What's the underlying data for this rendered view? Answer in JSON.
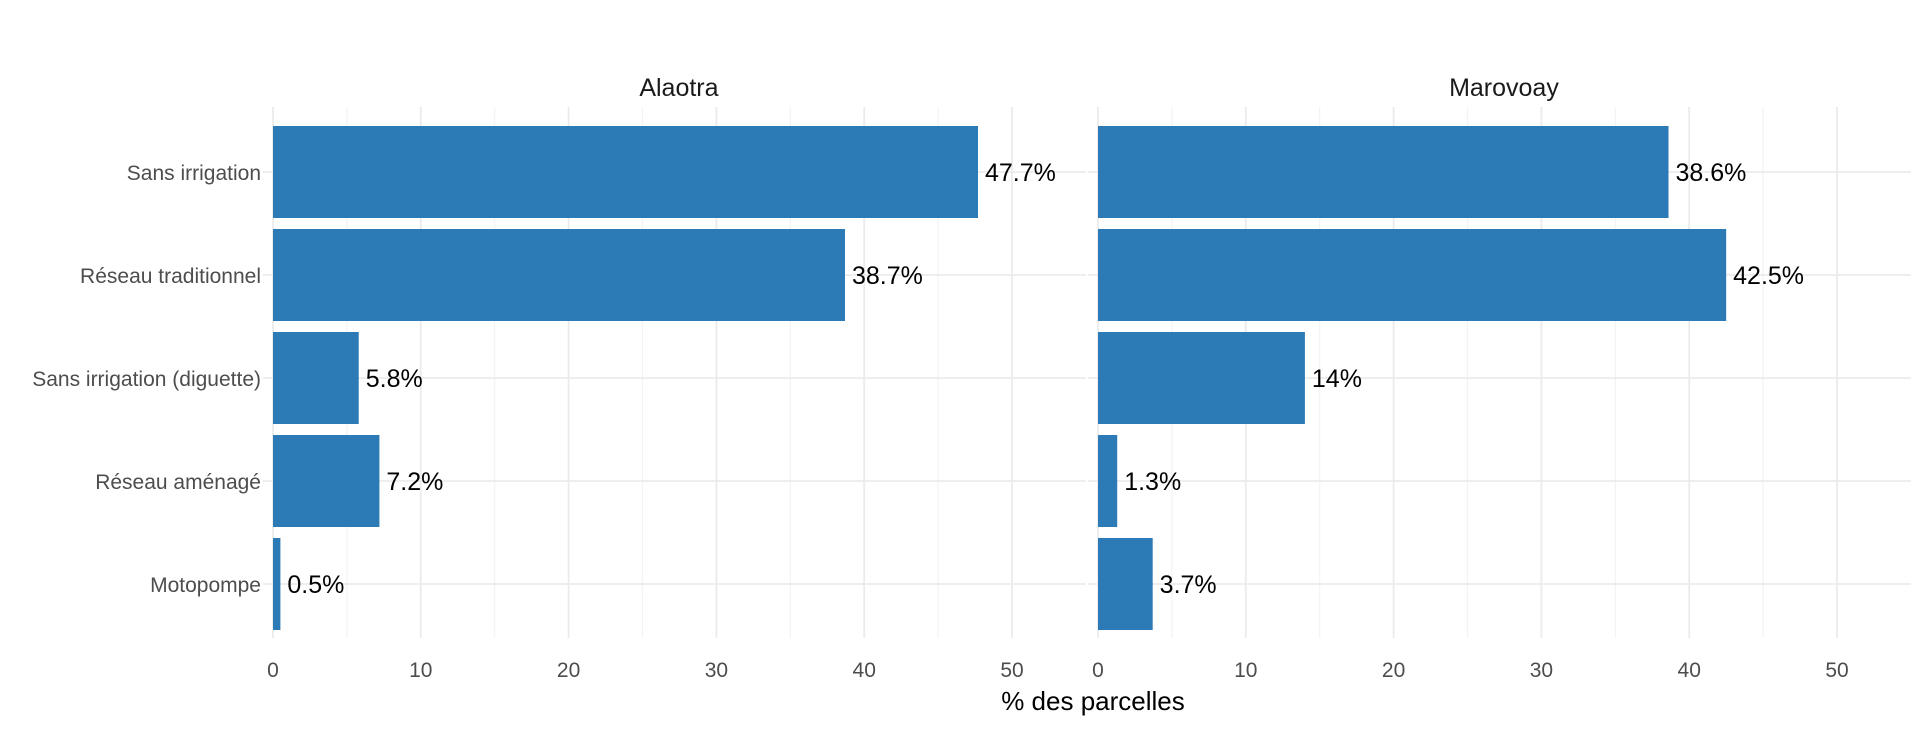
{
  "chart_data": {
    "type": "bar",
    "orientation": "horizontal",
    "xlabel": "% des parcelles",
    "ylabel": "",
    "xlim": [
      0,
      55
    ],
    "x_ticks": [
      0,
      10,
      20,
      30,
      40,
      50
    ],
    "categories": [
      "Sans irrigation",
      "Réseau traditionnel",
      "Sans irrigation (diguette)",
      "Réseau aménagé",
      "Motopompe"
    ],
    "facets": [
      {
        "name": "Alaotra",
        "values": [
          47.7,
          38.7,
          5.8,
          7.2,
          0.5
        ],
        "labels": [
          "47.7%",
          "38.7%",
          "5.8%",
          "7.2%",
          "0.5%"
        ]
      },
      {
        "name": "Marovoay",
        "values": [
          38.6,
          42.5,
          14,
          1.3,
          3.7
        ],
        "labels": [
          "38.6%",
          "42.5%",
          "14%",
          "1.3%",
          "3.7%"
        ]
      }
    ],
    "grid": true,
    "legend": "none",
    "colors": {
      "bar": "#2c7bb6",
      "grid_major": "#ebebeb",
      "grid_minor": "#f3f3f3",
      "axis_text": "#4d4d4d",
      "label_text": "#000000",
      "strip_text": "#1a1a1a"
    }
  }
}
